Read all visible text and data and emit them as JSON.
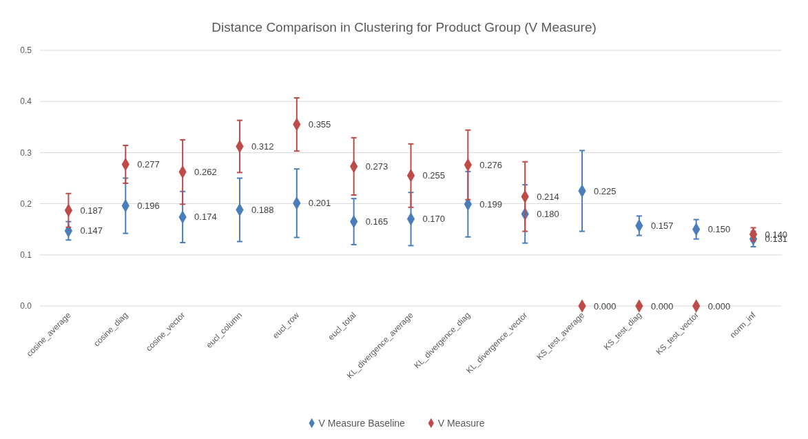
{
  "chart_data": {
    "type": "scatter",
    "title": "Distance Comparison in Clustering for Product Group (V Measure)",
    "categories": [
      "cosine_average",
      "cosine_diag",
      "cosine_vector",
      "eucl_column",
      "eucl_row",
      "eucl_total",
      "KL_divergence_average",
      "KL_divergence_diag",
      "KL_divergence_vector",
      "KS_test_average",
      "KS_test_diag",
      "KS_test_vector",
      "norm_inf"
    ],
    "series": [
      {
        "name": "V Measure Baseline",
        "color": "#4a7ebb",
        "values": [
          0.147,
          0.196,
          0.174,
          0.188,
          0.201,
          0.165,
          0.17,
          0.199,
          0.18,
          0.225,
          0.157,
          0.15,
          0.131
        ],
        "errors": [
          0.018,
          0.054,
          0.05,
          0.062,
          0.067,
          0.045,
          0.052,
          0.064,
          0.057,
          0.079,
          0.019,
          0.019,
          0.015
        ],
        "value_labels": [
          "0.147",
          "0.196",
          "0.174",
          "0.188",
          "0.201",
          "0.165",
          "0.170",
          "0.199",
          "0.180",
          "0.225",
          "0.157",
          "0.150",
          "0.131"
        ]
      },
      {
        "name": "V Measure",
        "color": "#be4b48",
        "values": [
          0.187,
          0.277,
          0.262,
          0.312,
          0.355,
          0.273,
          0.255,
          0.276,
          0.214,
          0.0,
          0.0,
          0.0,
          0.14
        ],
        "errors": [
          0.033,
          0.037,
          0.063,
          0.051,
          0.052,
          0.056,
          0.062,
          0.068,
          0.068,
          null,
          null,
          null,
          0.013
        ],
        "value_labels": [
          "0.187",
          "0.277",
          "0.262",
          "0.312",
          "0.355",
          "0.273",
          "0.255",
          "0.276",
          "0.214",
          "0.000",
          "0.000",
          "0.000",
          "0.140"
        ]
      }
    ],
    "ylim": [
      0,
      0.5
    ],
    "yticks": [
      {
        "value": 0,
        "label": "0.0"
      },
      {
        "value": 0.1,
        "label": "0.1"
      },
      {
        "value": 0.2,
        "label": "0.2"
      },
      {
        "value": 0.3,
        "label": "0.3"
      },
      {
        "value": 0.4,
        "label": "0.4"
      },
      {
        "value": 0.5,
        "label": "0.5"
      }
    ],
    "grid": "y",
    "legend": "bottom",
    "marker": "diamond"
  }
}
